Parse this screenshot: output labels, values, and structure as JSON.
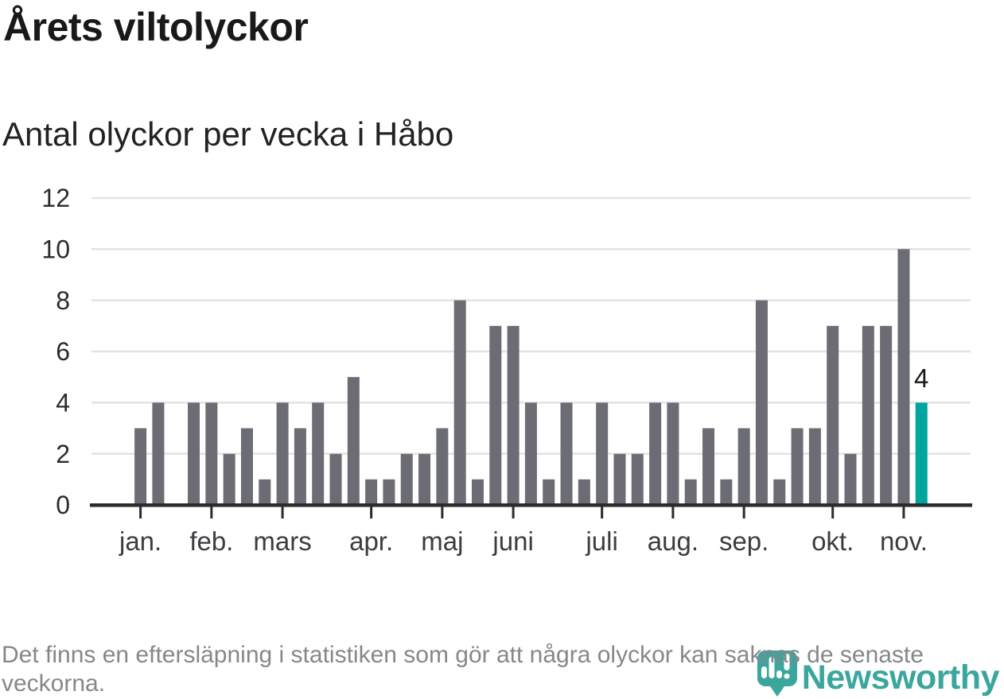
{
  "title": "Årets viltolyckor",
  "subtitle": "Antal olyckor per vecka i Håbo",
  "footer": {
    "note": "Det finns en eftersläpning i statistiken som gör att några olyckor kan saknas de senaste veckorna."
  },
  "branding": {
    "name": "Newsworthy",
    "logo_icon": "newsworthy-pin-barchart-icon"
  },
  "colors": {
    "bar": "#6c6c74",
    "highlight": "#00a69e",
    "axis": "#2b2b2b",
    "grid": "#e3e3e3",
    "axis_label": "#2b2b2b",
    "month_label": "#3a3d40",
    "annotation": "#1a1a1a",
    "title": "#191919",
    "subtitle": "#222222",
    "footer_text": "#84888b",
    "brand": "#3ba69d"
  },
  "chart_data": {
    "type": "bar",
    "title": "Årets viltolyckor",
    "subtitle": "Antal olyckor per vecka i Håbo",
    "x_unit": "vecka",
    "values": [
      3,
      4,
      0,
      4,
      4,
      2,
      3,
      1,
      4,
      3,
      4,
      2,
      5,
      1,
      1,
      2,
      2,
      3,
      8,
      1,
      7,
      7,
      4,
      1,
      4,
      1,
      4,
      2,
      2,
      4,
      4,
      1,
      3,
      1,
      3,
      8,
      1,
      3,
      3,
      7,
      2,
      7,
      7,
      10,
      4
    ],
    "weeks": 45,
    "y_ticks": [
      0,
      2,
      4,
      6,
      8,
      10,
      12
    ],
    "ylim": [
      0,
      12
    ],
    "grid": true,
    "month_ticks": [
      {
        "label": "jan.",
        "week": 1
      },
      {
        "label": "feb.",
        "week": 5
      },
      {
        "label": "mars",
        "week": 9
      },
      {
        "label": "apr.",
        "week": 14
      },
      {
        "label": "maj",
        "week": 18
      },
      {
        "label": "juni",
        "week": 22
      },
      {
        "label": "juli",
        "week": 27
      },
      {
        "label": "aug.",
        "week": 31
      },
      {
        "label": "sep.",
        "week": 35
      },
      {
        "label": "okt.",
        "week": 40
      },
      {
        "label": "nov.",
        "week": 44
      }
    ],
    "highlight_last_bar": true,
    "last_bar_label": "4"
  }
}
